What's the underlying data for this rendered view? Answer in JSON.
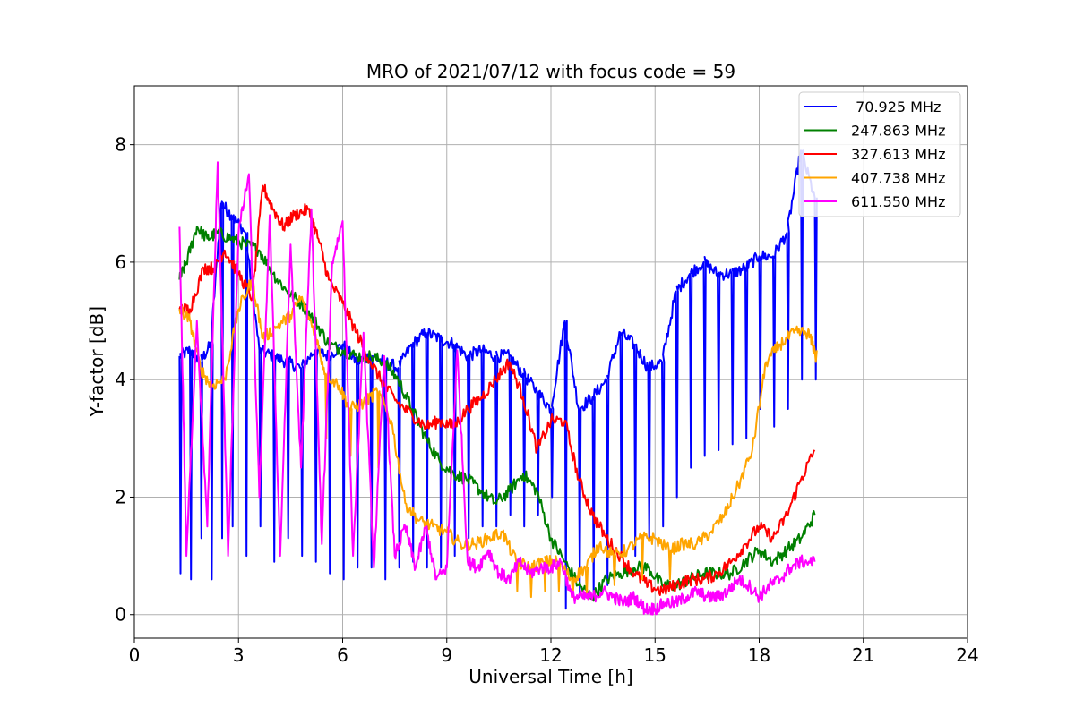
{
  "chart_data": {
    "type": "line",
    "title": "MRO of 2021/07/12 with focus code = 59",
    "xlabel": "Universal Time [h]",
    "ylabel": "Y-factor [dB]",
    "xlim": [
      0,
      24
    ],
    "ylim": [
      -0.4,
      9.0
    ],
    "xticks": [
      0,
      3,
      6,
      9,
      12,
      15,
      18,
      21,
      24
    ],
    "yticks": [
      0,
      2,
      4,
      6,
      8
    ],
    "grid": true,
    "legend_position": "top-right",
    "series": [
      {
        "name": " 70.925 MHz",
        "color": "#0000ff",
        "x": [
          1.3,
          1.6,
          1.9,
          2.2,
          2.5,
          2.8,
          3.2,
          3.6,
          4.0,
          4.4,
          4.8,
          5.2,
          5.6,
          6.0,
          6.4,
          6.8,
          7.2,
          7.6,
          8.0,
          8.4,
          8.8,
          9.2,
          9.6,
          10.0,
          10.4,
          10.8,
          11.2,
          11.6,
          12.0,
          12.4,
          12.8,
          13.2,
          13.6,
          14.0,
          14.4,
          14.8,
          15.2,
          15.6,
          16.0,
          16.4,
          16.8,
          17.2,
          17.6,
          18.0,
          18.4,
          18.8,
          19.2,
          19.6
        ],
        "y": [
          4.4,
          4.5,
          4.3,
          4.6,
          7.0,
          6.8,
          6.5,
          4.5,
          4.4,
          4.3,
          4.2,
          4.5,
          4.4,
          4.6,
          4.3,
          4.4,
          4.3,
          4.2,
          4.6,
          4.8,
          4.7,
          4.6,
          4.4,
          4.5,
          4.4,
          4.4,
          4.1,
          3.8,
          3.5,
          5.0,
          3.5,
          3.7,
          4.0,
          4.8,
          4.6,
          4.2,
          4.3,
          5.5,
          5.8,
          6.0,
          5.8,
          5.8,
          5.9,
          6.1,
          6.1,
          6.5,
          7.9,
          7.1
        ],
        "dips": [
          0.7,
          0.6,
          1.3,
          0.6,
          1.3,
          1.5,
          1.0,
          1.5,
          0.9,
          1.3,
          1.0,
          0.9,
          0.7,
          0.6,
          0.8,
          0.8,
          0.6,
          0.8,
          0.9,
          0.8,
          0.8,
          1.0,
          1.3,
          1.5,
          1.5,
          1.7,
          1.5,
          1.7,
          2.0,
          0.1,
          0.3,
          0.3,
          0.5,
          1.0,
          1.0,
          1.3,
          1.5,
          2.0,
          2.5,
          2.7,
          2.8,
          2.9,
          3.0,
          3.5,
          3.2,
          3.5,
          4.0,
          4.0
        ]
      },
      {
        "name": "247.863 MHz",
        "color": "#008000",
        "x": [
          1.3,
          1.5,
          1.8,
          2.1,
          2.4,
          2.8,
          3.2,
          3.6,
          4.0,
          4.4,
          4.8,
          5.2,
          5.6,
          6.0,
          6.4,
          6.8,
          7.2,
          7.6,
          8.0,
          8.4,
          8.8,
          9.2,
          9.6,
          10.0,
          10.4,
          10.8,
          11.2,
          11.6,
          12.0,
          12.4,
          12.8,
          13.2,
          13.6,
          14.0,
          14.4,
          14.8,
          15.2,
          15.6,
          16.0,
          16.4,
          16.8,
          17.2,
          17.6,
          18.0,
          18.4,
          18.8,
          19.2,
          19.6
        ],
        "y": [
          5.7,
          6.0,
          6.6,
          6.4,
          6.5,
          6.4,
          6.3,
          6.2,
          5.8,
          5.5,
          5.3,
          5.0,
          4.6,
          4.5,
          4.4,
          4.4,
          4.3,
          4.0,
          3.5,
          3.0,
          2.6,
          2.4,
          2.3,
          2.1,
          1.9,
          2.1,
          2.4,
          2.1,
          1.3,
          0.9,
          0.5,
          0.3,
          0.6,
          0.7,
          0.8,
          0.8,
          0.5,
          0.5,
          0.6,
          0.7,
          0.7,
          0.7,
          0.9,
          1.1,
          0.9,
          1.1,
          1.3,
          1.7
        ]
      },
      {
        "name": "327.613 MHz",
        "color": "#ff0000",
        "x": [
          1.3,
          1.6,
          2.0,
          2.3,
          2.6,
          3.0,
          3.4,
          3.7,
          4.0,
          4.3,
          4.6,
          5.0,
          5.3,
          5.6,
          6.0,
          6.4,
          6.8,
          7.2,
          7.6,
          8.0,
          8.4,
          8.8,
          9.2,
          9.6,
          10.0,
          10.4,
          10.8,
          11.2,
          11.6,
          12.0,
          12.4,
          12.8,
          13.2,
          13.6,
          14.0,
          14.4,
          14.8,
          15.2,
          15.6,
          16.0,
          16.4,
          16.8,
          17.2,
          17.6,
          18.0,
          18.4,
          18.8,
          19.2,
          19.6
        ],
        "y": [
          5.2,
          5.2,
          5.9,
          5.9,
          6.2,
          5.8,
          5.4,
          7.3,
          6.9,
          6.6,
          6.8,
          6.9,
          6.4,
          5.7,
          5.3,
          4.8,
          4.3,
          3.9,
          3.6,
          3.4,
          3.2,
          3.3,
          3.2,
          3.5,
          3.7,
          4.0,
          4.3,
          3.7,
          2.8,
          3.3,
          3.3,
          2.3,
          1.7,
          1.3,
          1.0,
          0.7,
          0.5,
          0.4,
          0.5,
          0.6,
          0.6,
          0.7,
          0.9,
          1.2,
          1.5,
          1.3,
          1.7,
          2.3,
          2.8
        ]
      },
      {
        "name": "407.738 MHz",
        "color": "#ffa500",
        "x": [
          1.3,
          1.6,
          1.9,
          2.2,
          2.6,
          3.0,
          3.4,
          3.7,
          4.1,
          4.5,
          4.8,
          5.2,
          5.5,
          5.9,
          6.2,
          6.6,
          7.0,
          7.4,
          7.8,
          8.2,
          8.6,
          9.0,
          9.4,
          9.8,
          10.2,
          10.6,
          11.0,
          11.4,
          11.8,
          12.2,
          12.6,
          13.0,
          13.4,
          13.8,
          14.2,
          14.6,
          15.0,
          15.4,
          15.8,
          16.2,
          16.6,
          17.0,
          17.4,
          17.8,
          18.2,
          18.6,
          19.0,
          19.4,
          19.6
        ],
        "y": [
          5.2,
          5.0,
          4.2,
          3.9,
          4.0,
          5.2,
          5.7,
          4.7,
          4.9,
          5.1,
          5.4,
          4.8,
          4.1,
          3.9,
          3.5,
          3.6,
          3.8,
          3.3,
          1.9,
          1.6,
          1.5,
          1.4,
          1.2,
          1.2,
          1.3,
          1.4,
          0.9,
          0.8,
          0.9,
          0.9,
          0.6,
          0.8,
          1.2,
          1.0,
          1.1,
          1.3,
          1.3,
          1.1,
          1.2,
          1.2,
          1.4,
          1.7,
          2.2,
          2.8,
          4.3,
          4.6,
          4.8,
          4.8,
          4.5
        ],
        "dips": [
          null,
          null,
          null,
          null,
          null,
          null,
          null,
          null,
          null,
          null,
          null,
          null,
          3.0,
          null,
          2.7,
          null,
          2.5,
          null,
          null,
          null,
          null,
          null,
          null,
          null,
          null,
          null,
          0.4,
          0.3,
          0.4,
          0.4,
          0.3,
          0.3,
          null,
          0.5,
          null,
          0.6,
          null,
          0.6,
          null,
          null,
          null,
          null,
          null,
          null,
          null,
          null,
          null,
          null,
          4.3
        ]
      },
      {
        "name": "611.550 MHz",
        "color": "#ff00ff",
        "x": [
          1.3,
          1.5,
          1.8,
          2.1,
          2.4,
          2.7,
          3.0,
          3.3,
          3.6,
          3.9,
          4.2,
          4.5,
          4.8,
          5.1,
          5.4,
          5.7,
          6.0,
          6.3,
          6.6,
          6.9,
          7.2,
          7.5,
          7.8,
          8.1,
          8.4,
          8.7,
          9.0,
          9.3,
          9.6,
          9.9,
          10.2,
          10.5,
          10.8,
          11.1,
          11.4,
          11.7,
          12.0,
          12.3,
          12.6,
          12.9,
          13.2,
          13.5,
          13.8,
          14.1,
          14.4,
          14.7,
          15.0,
          15.3,
          15.6,
          15.9,
          16.2,
          16.5,
          16.8,
          17.1,
          17.4,
          17.7,
          18.0,
          18.3,
          18.6,
          18.9,
          19.2,
          19.6
        ],
        "y": [
          6.6,
          1.0,
          5.0,
          1.5,
          7.7,
          1.0,
          6.5,
          7.5,
          2.0,
          6.8,
          1.0,
          6.3,
          2.5,
          6.9,
          1.2,
          6.0,
          6.7,
          1.0,
          4.8,
          0.8,
          4.4,
          1.0,
          1.5,
          0.8,
          1.5,
          0.6,
          0.8,
          4.5,
          0.9,
          0.8,
          1.1,
          0.7,
          0.6,
          0.9,
          0.7,
          0.8,
          0.8,
          0.9,
          0.3,
          0.3,
          0.3,
          0.4,
          0.3,
          0.2,
          0.3,
          0.1,
          0.1,
          0.2,
          0.2,
          0.3,
          0.4,
          0.3,
          0.3,
          0.4,
          0.6,
          0.5,
          0.3,
          0.5,
          0.6,
          0.8,
          0.9,
          0.9
        ]
      }
    ]
  }
}
